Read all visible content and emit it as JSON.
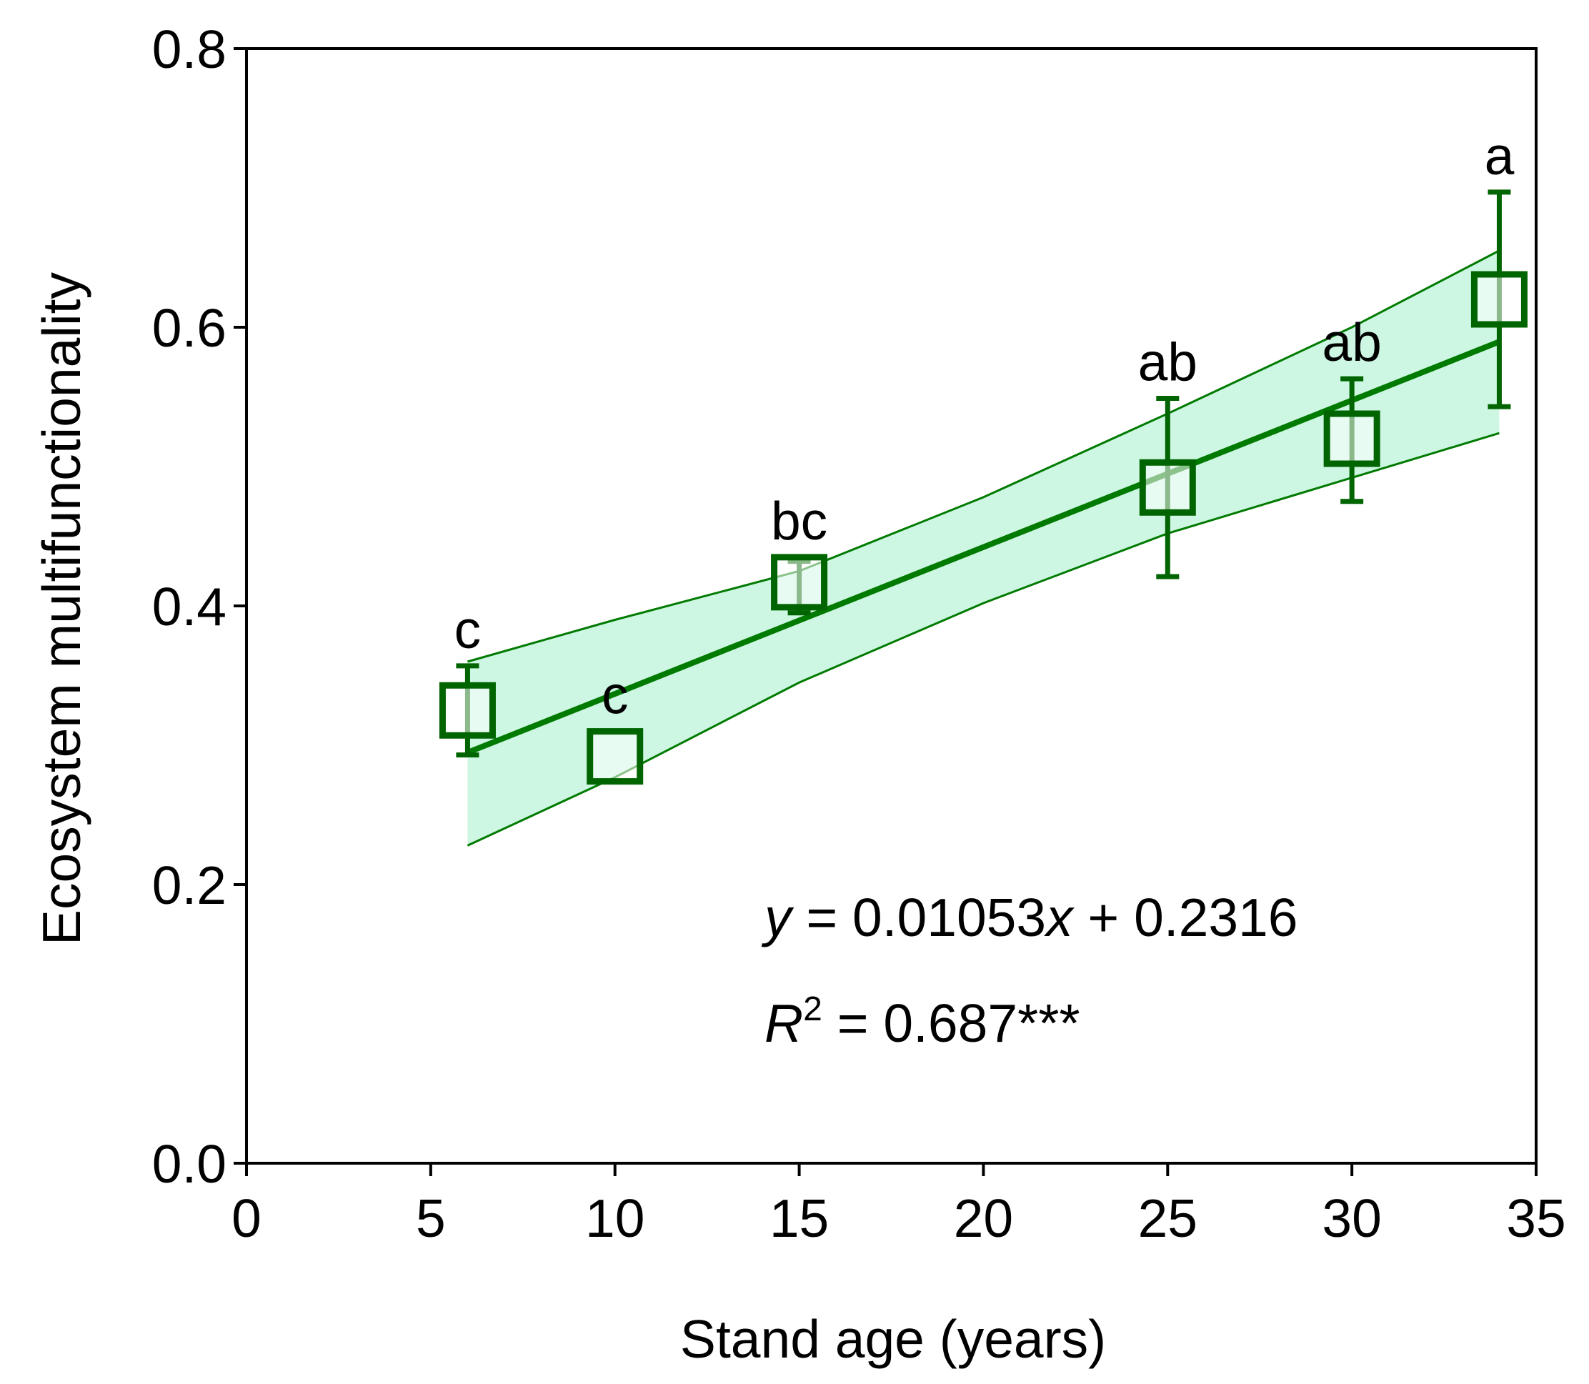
{
  "chart_data": {
    "type": "scatter",
    "title": "",
    "xlabel": "Stand age (years)",
    "ylabel": "Ecosystem multifunctionality",
    "xlim": [
      0,
      35
    ],
    "ylim": [
      0.0,
      0.8
    ],
    "x_ticks": [
      "0",
      "5",
      "10",
      "15",
      "20",
      "25",
      "30",
      "35"
    ],
    "x_tick_values": [
      0,
      5,
      10,
      15,
      20,
      25,
      30,
      35
    ],
    "y_ticks": [
      "0.0",
      "0.2",
      "0.4",
      "0.6",
      "0.8"
    ],
    "y_tick_values": [
      0.0,
      0.2,
      0.4,
      0.6,
      0.8
    ],
    "grid": false,
    "series": [
      {
        "name": "Ecosystem multifunctionality",
        "marker": "open-square",
        "color": "#006400",
        "x": [
          6,
          10,
          15,
          25,
          30,
          34
        ],
        "y": [
          0.325,
          0.292,
          0.417,
          0.485,
          0.52,
          0.62
        ],
        "err_low": [
          0.293,
          0.292,
          0.395,
          0.421,
          0.475,
          0.543
        ],
        "err_high": [
          0.357,
          0.292,
          0.432,
          0.549,
          0.563,
          0.697
        ],
        "letters": [
          "c",
          "c",
          "bc",
          "ab",
          "ab",
          "a"
        ]
      }
    ],
    "fit": {
      "slope": 0.01053,
      "intercept": 0.2316,
      "x_range": [
        6,
        34
      ],
      "color": "#007a00",
      "ci_lower": [
        [
          6,
          0.228
        ],
        [
          10,
          0.277
        ],
        [
          15,
          0.345
        ],
        [
          20,
          0.402
        ],
        [
          25,
          0.452
        ],
        [
          30,
          0.492
        ],
        [
          34,
          0.524
        ]
      ],
      "ci_upper": [
        [
          6,
          0.36
        ],
        [
          10,
          0.39
        ],
        [
          15,
          0.425
        ],
        [
          20,
          0.478
        ],
        [
          25,
          0.538
        ],
        [
          30,
          0.6
        ],
        [
          34,
          0.655
        ]
      ],
      "ci_fill": "#cdf7e2"
    },
    "annotations": {
      "equation": {
        "y_var": "y",
        "eq_text": " = 0.01053",
        "x_var": "x",
        "tail": " + 0.2316"
      },
      "r2": {
        "r_var": "R",
        "sup": "2",
        "rest": " = 0.687***"
      }
    }
  }
}
